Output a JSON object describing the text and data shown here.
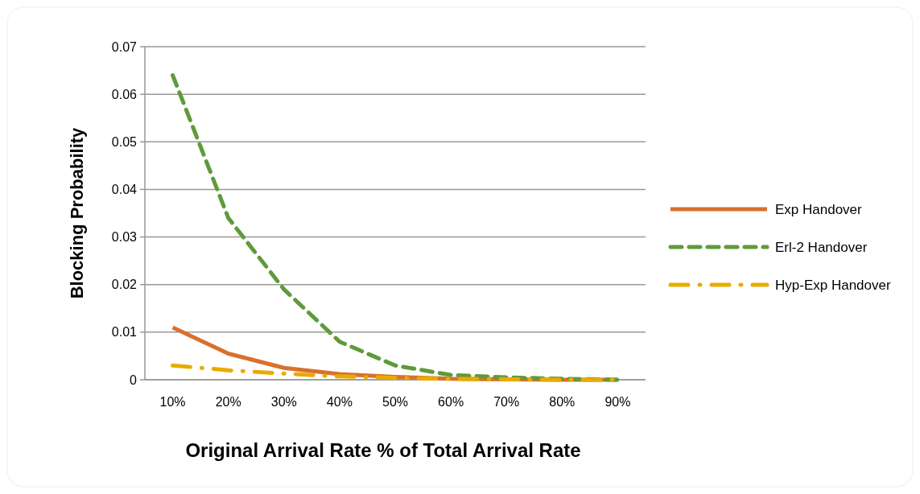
{
  "chart_data": {
    "type": "line",
    "xlabel": "Original Arrival Rate % of Total Arrival Rate",
    "ylabel": "Blocking Probability",
    "categories": [
      "10%",
      "20%",
      "30%",
      "40%",
      "50%",
      "60%",
      "70%",
      "80%",
      "90%"
    ],
    "series": [
      {
        "name": "Exp Handover",
        "color": "#d9702c",
        "line_style": "solid",
        "values": [
          0.011,
          0.0055,
          0.0025,
          0.0012,
          0.0006,
          0.0002,
          0.0001,
          0,
          0
        ]
      },
      {
        "name": "Erl-2 Handover",
        "color": "#5f9a3b",
        "line_style": "dashed",
        "values": [
          0.064,
          0.034,
          0.019,
          0.008,
          0.003,
          0.001,
          0.0005,
          0.0002,
          0
        ]
      },
      {
        "name": "Hyp-Exp Handover",
        "color": "#e8ab00",
        "line_style": "dashdot",
        "values": [
          0.003,
          0.002,
          0.0013,
          0.0007,
          0.0004,
          0.0002,
          0.0001,
          0,
          0
        ]
      }
    ],
    "ylim": [
      0,
      0.07
    ],
    "yticks": [
      0,
      0.01,
      0.02,
      0.03,
      0.04,
      0.05,
      0.06,
      0.07
    ],
    "grid": "y",
    "legend": "right"
  }
}
